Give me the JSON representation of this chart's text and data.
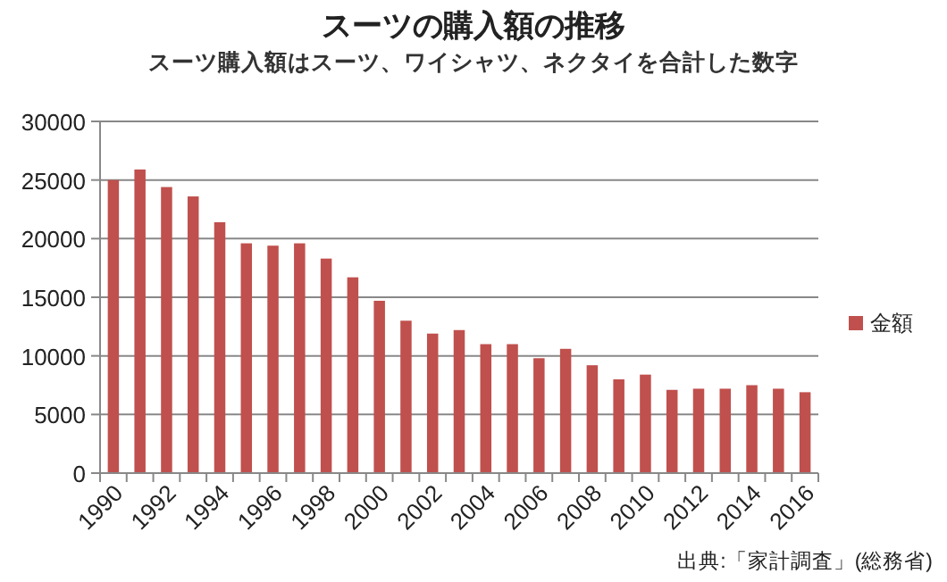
{
  "chart_data": {
    "type": "bar",
    "title": "スーツの購入額の推移",
    "subtitle": "スーツ購入額はスーツ、ワイシャツ、ネクタイを合計した数字",
    "categories": [
      "1990",
      null,
      "1992",
      null,
      "1994",
      null,
      "1996",
      null,
      "1998",
      null,
      "2000",
      null,
      "2002",
      null,
      "2004",
      null,
      "2006",
      null,
      "2008",
      null,
      "2010",
      null,
      "2012",
      null,
      "2014",
      null,
      "2016"
    ],
    "series": [
      {
        "name": "金額",
        "color": "#c0504d",
        "values": [
          25000,
          25900,
          24400,
          23600,
          21400,
          19600,
          19400,
          19600,
          18300,
          16700,
          14700,
          13000,
          11900,
          12200,
          11000,
          11000,
          9800,
          10600,
          9200,
          8000,
          8400,
          7100,
          7200,
          7200,
          7500,
          7200,
          6900
        ]
      }
    ],
    "ylim": [
      0,
      30000
    ],
    "yticks": [
      0,
      5000,
      10000,
      15000,
      20000,
      25000,
      30000
    ],
    "grid": "y",
    "legend": "right",
    "annotations": [
      "出典:「家計調査」(総務省)"
    ]
  }
}
